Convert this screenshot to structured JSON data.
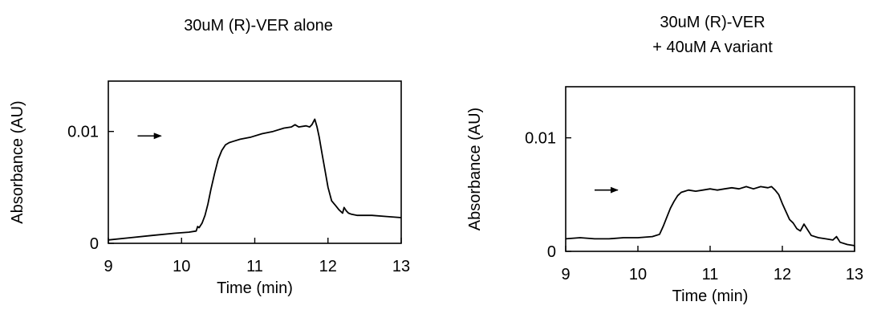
{
  "chart_data": [
    {
      "type": "line",
      "title_lines": [
        "30uM (R)-VER alone"
      ],
      "xlabel": "Time (min)",
      "ylabel": "Absorbance (AU)",
      "xlim": [
        9,
        13
      ],
      "ylim": [
        0,
        0.0145
      ],
      "x_ticks": [
        9,
        10,
        11,
        12,
        13
      ],
      "y_ticks": [
        {
          "value": 0,
          "label": "0"
        },
        {
          "value": 0.01,
          "label": "0.01"
        }
      ],
      "grid": false,
      "arrow": {
        "from": [
          9.4,
          0.0096
        ],
        "to": [
          9.72,
          0.0096
        ]
      },
      "series": [
        {
          "x": [
            9.0,
            9.3,
            9.6,
            9.9,
            10.1,
            10.2,
            10.22,
            10.24,
            10.28,
            10.32,
            10.36,
            10.4,
            10.45,
            10.5,
            10.55,
            10.6,
            10.65,
            10.7,
            10.8,
            10.95,
            11.1,
            11.25,
            11.4,
            11.5,
            11.55,
            11.6,
            11.7,
            11.75,
            11.78,
            11.82,
            11.85,
            11.88,
            11.92,
            11.96,
            12.0,
            12.05,
            12.1,
            12.15,
            12.2,
            12.22,
            12.25,
            12.28,
            12.32,
            12.4,
            12.6,
            12.8,
            13.0
          ],
          "y": [
            0.0003,
            0.0005,
            0.0007,
            0.0009,
            0.001,
            0.0011,
            0.0015,
            0.0014,
            0.0018,
            0.0025,
            0.0035,
            0.0048,
            0.0062,
            0.0075,
            0.0083,
            0.0088,
            0.009,
            0.0091,
            0.0093,
            0.0095,
            0.0098,
            0.01,
            0.0103,
            0.0104,
            0.0106,
            0.0104,
            0.0105,
            0.0104,
            0.0106,
            0.0111,
            0.0104,
            0.0095,
            0.008,
            0.0065,
            0.005,
            0.0038,
            0.0034,
            0.003,
            0.0027,
            0.0032,
            0.0029,
            0.0027,
            0.0026,
            0.0025,
            0.0025,
            0.0024,
            0.0023
          ]
        }
      ]
    },
    {
      "type": "line",
      "title_lines": [
        "30uM (R)-VER",
        "+ 40uM A variant"
      ],
      "xlabel": "Time (min)",
      "ylabel": "Absorbance (AU)",
      "xlim": [
        9,
        13
      ],
      "ylim": [
        0,
        0.0145
      ],
      "x_ticks": [
        9,
        10,
        11,
        12,
        13
      ],
      "y_ticks": [
        {
          "value": 0,
          "label": "0"
        },
        {
          "value": 0.01,
          "label": "0.01"
        }
      ],
      "grid": false,
      "arrow": {
        "from": [
          9.4,
          0.0054
        ],
        "to": [
          9.72,
          0.0054
        ]
      },
      "series": [
        {
          "x": [
            9.0,
            9.2,
            9.4,
            9.6,
            9.8,
            10.0,
            10.2,
            10.3,
            10.35,
            10.4,
            10.45,
            10.5,
            10.55,
            10.6,
            10.65,
            10.7,
            10.8,
            10.9,
            11.0,
            11.1,
            11.2,
            11.3,
            11.4,
            11.5,
            11.6,
            11.7,
            11.8,
            11.85,
            11.9,
            11.95,
            12.0,
            12.05,
            12.1,
            12.15,
            12.2,
            12.25,
            12.3,
            12.4,
            12.5,
            12.6,
            12.7,
            12.75,
            12.8,
            12.9,
            13.0
          ],
          "y": [
            0.0011,
            0.0012,
            0.0011,
            0.0011,
            0.0012,
            0.0012,
            0.0013,
            0.0015,
            0.0022,
            0.003,
            0.0038,
            0.0044,
            0.0049,
            0.0052,
            0.0053,
            0.0054,
            0.0053,
            0.0054,
            0.0055,
            0.0054,
            0.0055,
            0.0056,
            0.0055,
            0.0057,
            0.0055,
            0.0057,
            0.0056,
            0.0057,
            0.0054,
            0.005,
            0.0042,
            0.0035,
            0.0028,
            0.0025,
            0.002,
            0.0018,
            0.0024,
            0.0014,
            0.0012,
            0.0011,
            0.001,
            0.0013,
            0.0008,
            0.0006,
            0.0005
          ]
        }
      ]
    }
  ]
}
